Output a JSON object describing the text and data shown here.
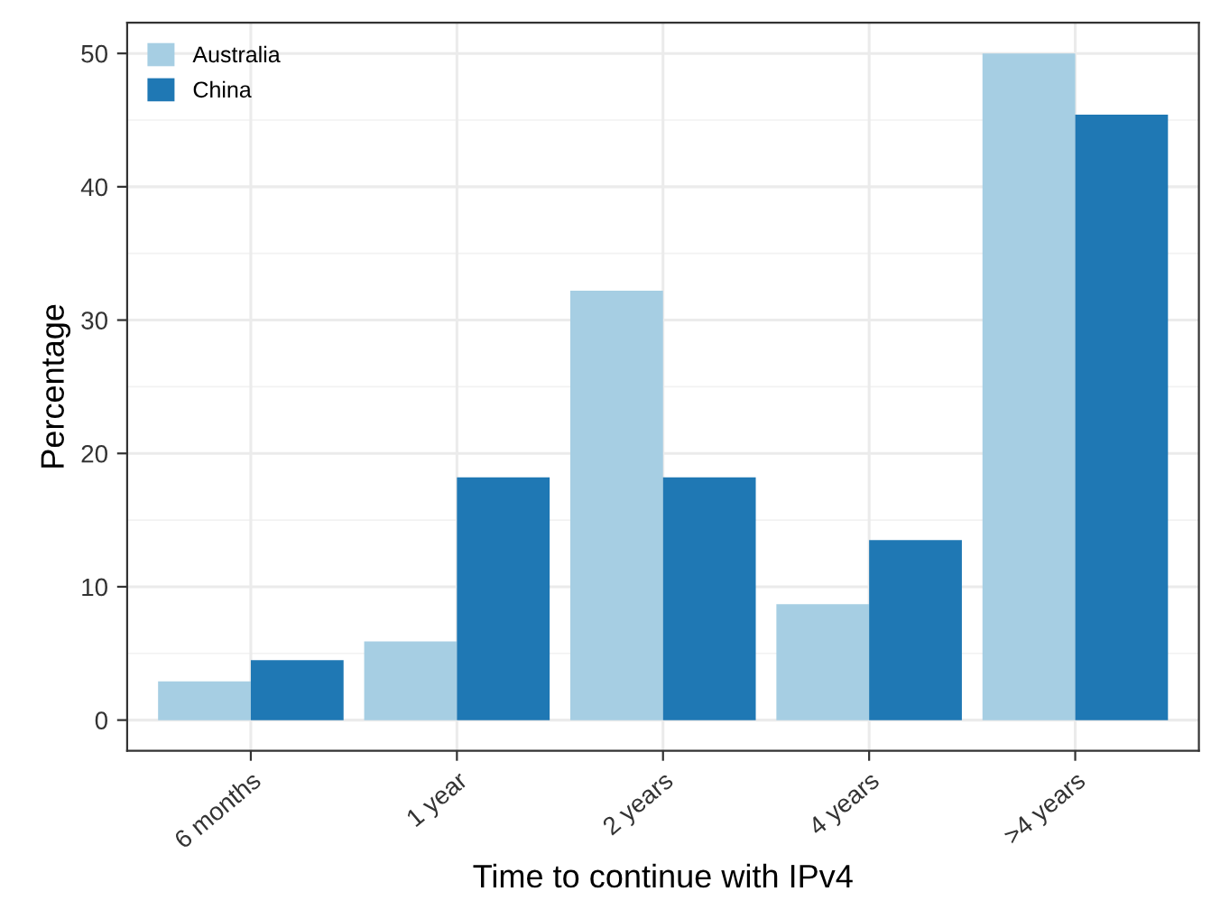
{
  "chart_data": {
    "type": "bar",
    "xlabel": "Time to continue with IPv4",
    "ylabel": "Percentage",
    "categories": [
      "6 months",
      "1 year",
      "2 years",
      "4 years",
      ">4 years"
    ],
    "series": [
      {
        "name": "Australia",
        "color": "#a6cee3",
        "values": [
          2.9,
          5.9,
          32.2,
          8.7,
          50.0
        ]
      },
      {
        "name": "China",
        "color": "#1f78b4",
        "values": [
          4.5,
          18.2,
          18.2,
          13.5,
          45.4
        ]
      }
    ],
    "ylim": [
      -2.3,
      52.3
    ],
    "yticks": [
      0,
      10,
      20,
      30,
      40,
      50
    ],
    "grid": true,
    "legend": "top left"
  }
}
